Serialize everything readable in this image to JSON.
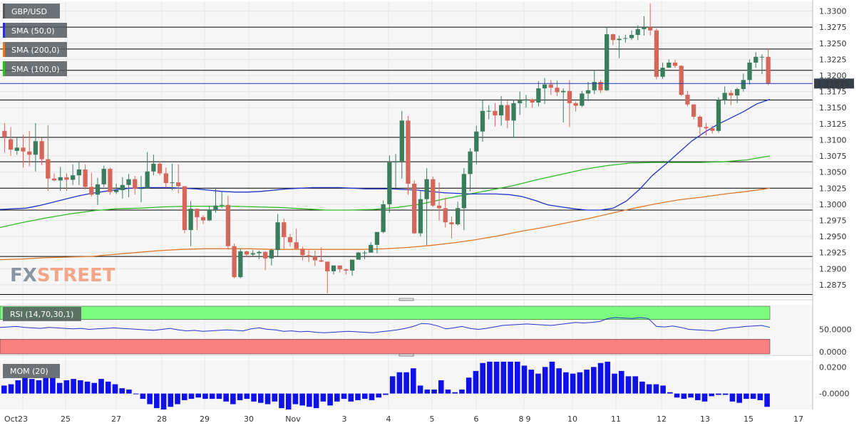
{
  "app": {
    "watermark_part1": "FX",
    "watermark_part2": "STREET"
  },
  "colors": {
    "bull": "#3a7d5d",
    "bear": "#d5675a",
    "sma50": "#2233cc",
    "sma200": "#e0782c",
    "sma100": "#2fbb24",
    "rsi_over": "#7cfc7c",
    "rsi_under": "#f88080",
    "mom": "#1010e8",
    "price_tag": "#37404a"
  },
  "legend": [
    {
      "label": "GBP/USD",
      "color": "#555555"
    },
    {
      "label": "SMA (50,0)",
      "color": "#2233cc"
    },
    {
      "label": "SMA (200,0)",
      "color": "#e0782c"
    },
    {
      "label": "SMA (100,0)",
      "color": "#2fbb24"
    }
  ],
  "current_price": "1.31875",
  "rsi": {
    "label": "RSI (14,70,30,1)",
    "tick": "50.0000",
    "tick_zero": "0.0000"
  },
  "mom": {
    "label": "MOM (20)",
    "tick_top": "0.0200",
    "tick_mid": "-0.0000"
  },
  "chart_data": {
    "type": "candlestick",
    "title": "GBP/USD",
    "y_ticks": [
      "1.3300",
      "1.3275",
      "1.3250",
      "1.3225",
      "1.3200",
      "1.3175",
      "1.3150",
      "1.3125",
      "1.3100",
      "1.3075",
      "1.3050",
      "1.3025",
      "1.3000",
      "1.2975",
      "1.2950",
      "1.2925",
      "1.2900",
      "1.2875"
    ],
    "ylim": [
      1.2855,
      1.3315
    ],
    "x_labels": [
      "Oct",
      "23",
      "25",
      "27",
      "28",
      "29",
      "30",
      "Nov",
      "3",
      "4",
      "5",
      "6",
      "8",
      "9",
      "10",
      "11",
      "12",
      "13",
      "15",
      "17"
    ],
    "horizontal_levels": [
      1.3275,
      1.3241,
      1.3208,
      1.3162,
      1.3104,
      1.3066,
      1.3025,
      1.2991,
      1.2919,
      1.286
    ],
    "candles": [
      [
        1.3114,
        1.3105,
        1.3126,
        1.308
      ],
      [
        1.3101,
        1.3085,
        1.312,
        1.3075
      ],
      [
        1.3083,
        1.3088,
        1.3105,
        1.3077
      ],
      [
        1.3088,
        1.3082,
        1.3108,
        1.3057
      ],
      [
        1.3082,
        1.3077,
        1.3114,
        1.3059
      ],
      [
        1.3077,
        1.3098,
        1.3126,
        1.3051
      ],
      [
        1.3098,
        1.307,
        1.3103,
        1.3061
      ],
      [
        1.307,
        1.304,
        1.3123,
        1.3021
      ],
      [
        1.304,
        1.3037,
        1.3048,
        1.3036
      ],
      [
        1.3037,
        1.3042,
        1.3058,
        1.3021
      ],
      [
        1.3042,
        1.3038,
        1.3048,
        1.3021
      ],
      [
        1.3038,
        1.3045,
        1.3062,
        1.303
      ],
      [
        1.3045,
        1.3054,
        1.3065,
        1.303
      ],
      [
        1.3054,
        1.3027,
        1.3062,
        1.3023
      ],
      [
        1.3027,
        1.3015,
        1.3049,
        1.3012
      ],
      [
        1.3015,
        1.3031,
        1.3041,
        1.2999
      ],
      [
        1.3031,
        1.3055,
        1.306,
        1.3027
      ],
      [
        1.3055,
        1.3019,
        1.3057,
        1.3015
      ],
      [
        1.3019,
        1.3022,
        1.3032,
        1.3016
      ],
      [
        1.3022,
        1.303,
        1.3042,
        1.3009
      ],
      [
        1.303,
        1.3039,
        1.3047,
        1.3011
      ],
      [
        1.3039,
        1.3024,
        1.3044,
        1.3015
      ],
      [
        1.3024,
        1.3025,
        1.3044,
        1.3003
      ],
      [
        1.3025,
        1.3051,
        1.3081,
        1.3024
      ],
      [
        1.3051,
        1.3063,
        1.3077,
        1.3045
      ],
      [
        1.3063,
        1.3048,
        1.3067,
        1.3045
      ],
      [
        1.3048,
        1.3033,
        1.3057,
        1.3026
      ],
      [
        1.3033,
        1.3034,
        1.3063,
        1.3022
      ],
      [
        1.3034,
        1.3028,
        1.3062,
        1.3017
      ],
      [
        1.3028,
        1.296,
        1.3028,
        1.2955
      ],
      [
        1.296,
        1.2993,
        1.3005,
        1.2935
      ],
      [
        1.2993,
        1.298,
        1.2993,
        1.296
      ],
      [
        1.298,
        1.2975,
        1.2983,
        1.2969
      ],
      [
        1.2975,
        1.2992,
        1.2998,
        1.2974
      ],
      [
        1.2992,
        1.2998,
        1.3026,
        1.2987
      ],
      [
        1.2998,
        1.2999,
        1.3019,
        1.2994
      ],
      [
        1.2999,
        1.2935,
        1.3013,
        1.293
      ],
      [
        1.2935,
        1.2887,
        1.2939,
        1.2885
      ],
      [
        1.2887,
        1.2927,
        1.2931,
        1.2885
      ],
      [
        1.2927,
        1.2922,
        1.2928,
        1.2918
      ],
      [
        1.2922,
        1.2924,
        1.2929,
        1.292
      ],
      [
        1.2924,
        1.2926,
        1.2928,
        1.2915
      ],
      [
        1.2926,
        1.2916,
        1.2927,
        1.2898
      ],
      [
        1.2916,
        1.2929,
        1.2931,
        1.2905
      ],
      [
        1.2929,
        1.2972,
        1.2985,
        1.2919
      ],
      [
        1.2972,
        1.2949,
        1.2978,
        1.2931
      ],
      [
        1.2949,
        1.2941,
        1.2954,
        1.2934
      ],
      [
        1.2941,
        1.2931,
        1.2962,
        1.2931
      ],
      [
        1.2931,
        1.2921,
        1.2934,
        1.2913
      ],
      [
        1.2921,
        1.2919,
        1.2929,
        1.291
      ],
      [
        1.2919,
        1.2913,
        1.2928,
        1.2904
      ],
      [
        1.2913,
        1.2911,
        1.2933,
        1.291
      ],
      [
        1.2911,
        1.2896,
        1.291,
        1.2862
      ],
      [
        1.2896,
        1.2905,
        1.2905,
        1.2891
      ],
      [
        1.2905,
        1.2899,
        1.29,
        1.2894
      ],
      [
        1.2899,
        1.2897,
        1.29,
        1.2891
      ],
      [
        1.2897,
        1.2914,
        1.2914,
        1.2889
      ],
      [
        1.2914,
        1.2925,
        1.2926,
        1.2915
      ],
      [
        1.2925,
        1.2925,
        1.2928,
        1.2915
      ],
      [
        1.2925,
        1.2937,
        1.2941,
        1.2927
      ],
      [
        1.2937,
        1.2957,
        1.2957,
        1.2924
      ],
      [
        1.2957,
        1.3,
        1.3006,
        1.2955
      ],
      [
        1.3,
        1.3065,
        1.3076,
        1.2987
      ],
      [
        1.3065,
        1.3067,
        1.3078,
        1.3025
      ],
      [
        1.3067,
        1.313,
        1.3145,
        1.304
      ],
      [
        1.313,
        1.3032,
        1.3137,
        1.3015
      ],
      [
        1.3032,
        1.2955,
        1.3037,
        1.2954
      ],
      [
        1.2955,
        1.3008,
        1.3021,
        1.295
      ],
      [
        1.3008,
        1.3039,
        1.3056,
        1.2937
      ],
      [
        1.3039,
        1.2998,
        1.3043,
        1.2996
      ],
      [
        1.2998,
        1.2994,
        1.3034,
        1.2975
      ],
      [
        1.2994,
        1.2972,
        1.301,
        1.2964
      ],
      [
        1.2972,
        1.2969,
        1.2981,
        1.2947
      ],
      [
        1.2969,
        1.2994,
        1.3004,
        1.2967
      ],
      [
        1.2994,
        1.3047,
        1.3056,
        1.296
      ],
      [
        1.3047,
        1.3082,
        1.3087,
        1.302
      ],
      [
        1.3082,
        1.3113,
        1.3122,
        1.3062
      ],
      [
        1.3113,
        1.3145,
        1.3162,
        1.3097
      ],
      [
        1.3145,
        1.3145,
        1.3154,
        1.3132
      ],
      [
        1.3145,
        1.3138,
        1.3157,
        1.3121
      ],
      [
        1.3138,
        1.3154,
        1.3168,
        1.3122
      ],
      [
        1.3154,
        1.313,
        1.3161,
        1.3118
      ],
      [
        1.313,
        1.3157,
        1.3162,
        1.3103
      ],
      [
        1.3157,
        1.3161,
        1.3175,
        1.3139
      ],
      [
        1.3161,
        1.3163,
        1.317,
        1.315
      ],
      [
        1.3163,
        1.3158,
        1.3164,
        1.315
      ],
      [
        1.3158,
        1.318,
        1.3191,
        1.3152
      ],
      [
        1.318,
        1.3186,
        1.3196,
        1.3156
      ],
      [
        1.3186,
        1.3181,
        1.3193,
        1.317
      ],
      [
        1.3181,
        1.3174,
        1.3192,
        1.3168
      ],
      [
        1.3174,
        1.3176,
        1.318,
        1.3127
      ],
      [
        1.3176,
        1.3157,
        1.3193,
        1.312
      ],
      [
        1.3157,
        1.3153,
        1.316,
        1.3144
      ],
      [
        1.3153,
        1.3172,
        1.3176,
        1.3151
      ],
      [
        1.3172,
        1.3177,
        1.319,
        1.316
      ],
      [
        1.3177,
        1.319,
        1.3209,
        1.3171
      ],
      [
        1.319,
        1.3177,
        1.3193,
        1.3173
      ],
      [
        1.3177,
        1.3264,
        1.3275,
        1.3176
      ],
      [
        1.3264,
        1.3255,
        1.3265,
        1.3247
      ],
      [
        1.3255,
        1.3257,
        1.3262,
        1.3227
      ],
      [
        1.3257,
        1.3258,
        1.3263,
        1.3251
      ],
      [
        1.3258,
        1.3263,
        1.327,
        1.3255
      ],
      [
        1.3263,
        1.3272,
        1.3278,
        1.3255
      ],
      [
        1.3272,
        1.3275,
        1.3292,
        1.3262
      ],
      [
        1.3275,
        1.327,
        1.3312,
        1.3262
      ],
      [
        1.327,
        1.3198,
        1.3273,
        1.3194
      ],
      [
        1.3198,
        1.3212,
        1.322,
        1.3195
      ],
      [
        1.3212,
        1.322,
        1.3225,
        1.3215
      ],
      [
        1.322,
        1.3215,
        1.3224,
        1.3212
      ],
      [
        1.3215,
        1.317,
        1.3216,
        1.3168
      ],
      [
        1.317,
        1.3155,
        1.3176,
        1.3152
      ],
      [
        1.3155,
        1.3136,
        1.3155,
        1.3132
      ],
      [
        1.3136,
        1.312,
        1.3138,
        1.3105
      ],
      [
        1.312,
        1.3118,
        1.3126,
        1.3107
      ],
      [
        1.3118,
        1.3114,
        1.3122,
        1.311
      ],
      [
        1.3114,
        1.3162,
        1.3166,
        1.3111
      ],
      [
        1.3162,
        1.3173,
        1.3183,
        1.3155
      ],
      [
        1.3173,
        1.3169,
        1.3177,
        1.3154
      ],
      [
        1.3169,
        1.3179,
        1.3181,
        1.3157
      ],
      [
        1.3179,
        1.3193,
        1.3203,
        1.3175
      ],
      [
        1.3193,
        1.322,
        1.3225,
        1.3186
      ],
      [
        1.322,
        1.3229,
        1.3236,
        1.3212
      ],
      [
        1.3229,
        1.3229,
        1.3233,
        1.3202
      ],
      [
        1.3229,
        1.3188,
        1.3242,
        1.3185
      ]
    ],
    "sma50": [
      1.2992,
      1.2993,
      1.2994,
      1.2998,
      1.3003,
      1.3008,
      1.3013,
      1.3017,
      1.302,
      1.3023,
      1.3025,
      1.3026,
      1.3026,
      1.3026,
      1.3025,
      1.3024,
      1.3022,
      1.302,
      1.3019,
      1.3019,
      1.302,
      1.3022,
      1.3024,
      1.3025,
      1.3026,
      1.3026,
      1.3026,
      1.3025,
      1.3024,
      1.3024,
      1.3024,
      1.3023,
      1.3022,
      1.302,
      1.3018,
      1.3017,
      1.3016,
      1.3016,
      1.3016,
      1.3015,
      1.3012,
      1.3006,
      1.2999,
      1.2996,
      1.2993,
      1.2991,
      1.2991,
      1.2994,
      1.3005,
      1.3023,
      1.3045,
      1.3062,
      1.308,
      1.3098,
      1.3112,
      1.3124,
      1.3134,
      1.3144,
      1.3156,
      1.3163
    ],
    "sma100": [
      1.2964,
      1.2972,
      1.2979,
      1.2985,
      1.299,
      1.2993,
      1.2994,
      1.2996,
      1.2997,
      1.2997,
      1.2997,
      1.2996,
      1.2995,
      1.2993,
      1.2991,
      1.2991,
      1.2992,
      1.2995,
      1.3,
      1.3008,
      1.3015,
      1.3022,
      1.3029,
      1.3038,
      1.3046,
      1.3054,
      1.306,
      1.3064,
      1.3065,
      1.3065,
      1.3065,
      1.3066,
      1.3069,
      1.3075
    ],
    "sma200": [
      1.2914,
      1.2915,
      1.2917,
      1.2918,
      1.2919,
      1.2922,
      1.2925,
      1.2928,
      1.293,
      1.2931,
      1.2931,
      1.2931,
      1.293,
      1.293,
      1.293,
      1.293,
      1.293,
      1.2931,
      1.2933,
      1.2936,
      1.294,
      1.2945,
      1.2951,
      1.2958,
      1.2964,
      1.2971,
      1.2978,
      1.2986,
      1.2994,
      1.3001,
      1.3007,
      1.3011,
      1.3016,
      1.302,
      1.3025
    ],
    "rsi_values": [
      54,
      55,
      56,
      54,
      53,
      52,
      54,
      53,
      52,
      51,
      52,
      50,
      51,
      52,
      53,
      52,
      51,
      50,
      49,
      48,
      50,
      52,
      49,
      47,
      48,
      46,
      47,
      48,
      49,
      48,
      47,
      51,
      53,
      50,
      49,
      46,
      47,
      45,
      46,
      44,
      43,
      44,
      45,
      46,
      45,
      44,
      43,
      45,
      47,
      49,
      52,
      56,
      62,
      61,
      57,
      51,
      53,
      56,
      52,
      50,
      52,
      55,
      58,
      59,
      60,
      61,
      60,
      59,
      58,
      60,
      62,
      64,
      63,
      64,
      66,
      72,
      74,
      73,
      72,
      74,
      72,
      56,
      55,
      57,
      54,
      50,
      49,
      48,
      47,
      50,
      53,
      54,
      56,
      57,
      58,
      54
    ],
    "rsi_ylim": [
      0,
      100
    ],
    "mom_values": [
      0.006,
      0.007,
      0.01,
      0.012,
      0.011,
      0.01,
      0.012,
      0.012,
      0.008,
      0.01,
      0.011,
      0.01,
      0.009,
      0.008,
      0.011,
      0.009,
      0.007,
      0.004,
      0.003,
      0.0,
      -0.004,
      -0.008,
      -0.011,
      -0.012,
      -0.01,
      -0.008,
      -0.005,
      -0.004,
      -0.003,
      -0.004,
      -0.004,
      -0.004,
      -0.006,
      -0.008,
      -0.005,
      -0.004,
      -0.006,
      -0.007,
      -0.008,
      -0.006,
      -0.011,
      -0.012,
      -0.008,
      -0.009,
      -0.01,
      -0.011,
      -0.006,
      -0.009,
      -0.006,
      -0.004,
      -0.006,
      -0.005,
      -0.004,
      -0.005,
      -0.003,
      -0.001,
      0.013,
      0.016,
      0.016,
      0.019,
      0.006,
      0.003,
      0.003,
      0.01,
      0.003,
      0.001,
      0.003,
      0.012,
      0.017,
      0.023,
      0.024,
      0.024,
      0.024,
      0.024,
      0.024,
      0.021,
      0.018,
      0.015,
      0.02,
      0.024,
      0.019,
      0.016,
      0.015,
      0.016,
      0.018,
      0.02,
      0.023,
      0.024,
      0.015,
      0.017,
      0.013,
      0.013,
      0.009,
      0.007,
      0.007,
      0.006,
      0.001,
      -0.003,
      -0.004,
      -0.003,
      -0.005,
      -0.006,
      -0.002,
      -0.001,
      -0.001,
      -0.006,
      -0.007,
      -0.004,
      -0.004,
      -0.005,
      -0.01
    ],
    "mom_ylim": [
      -0.012,
      0.025
    ]
  }
}
